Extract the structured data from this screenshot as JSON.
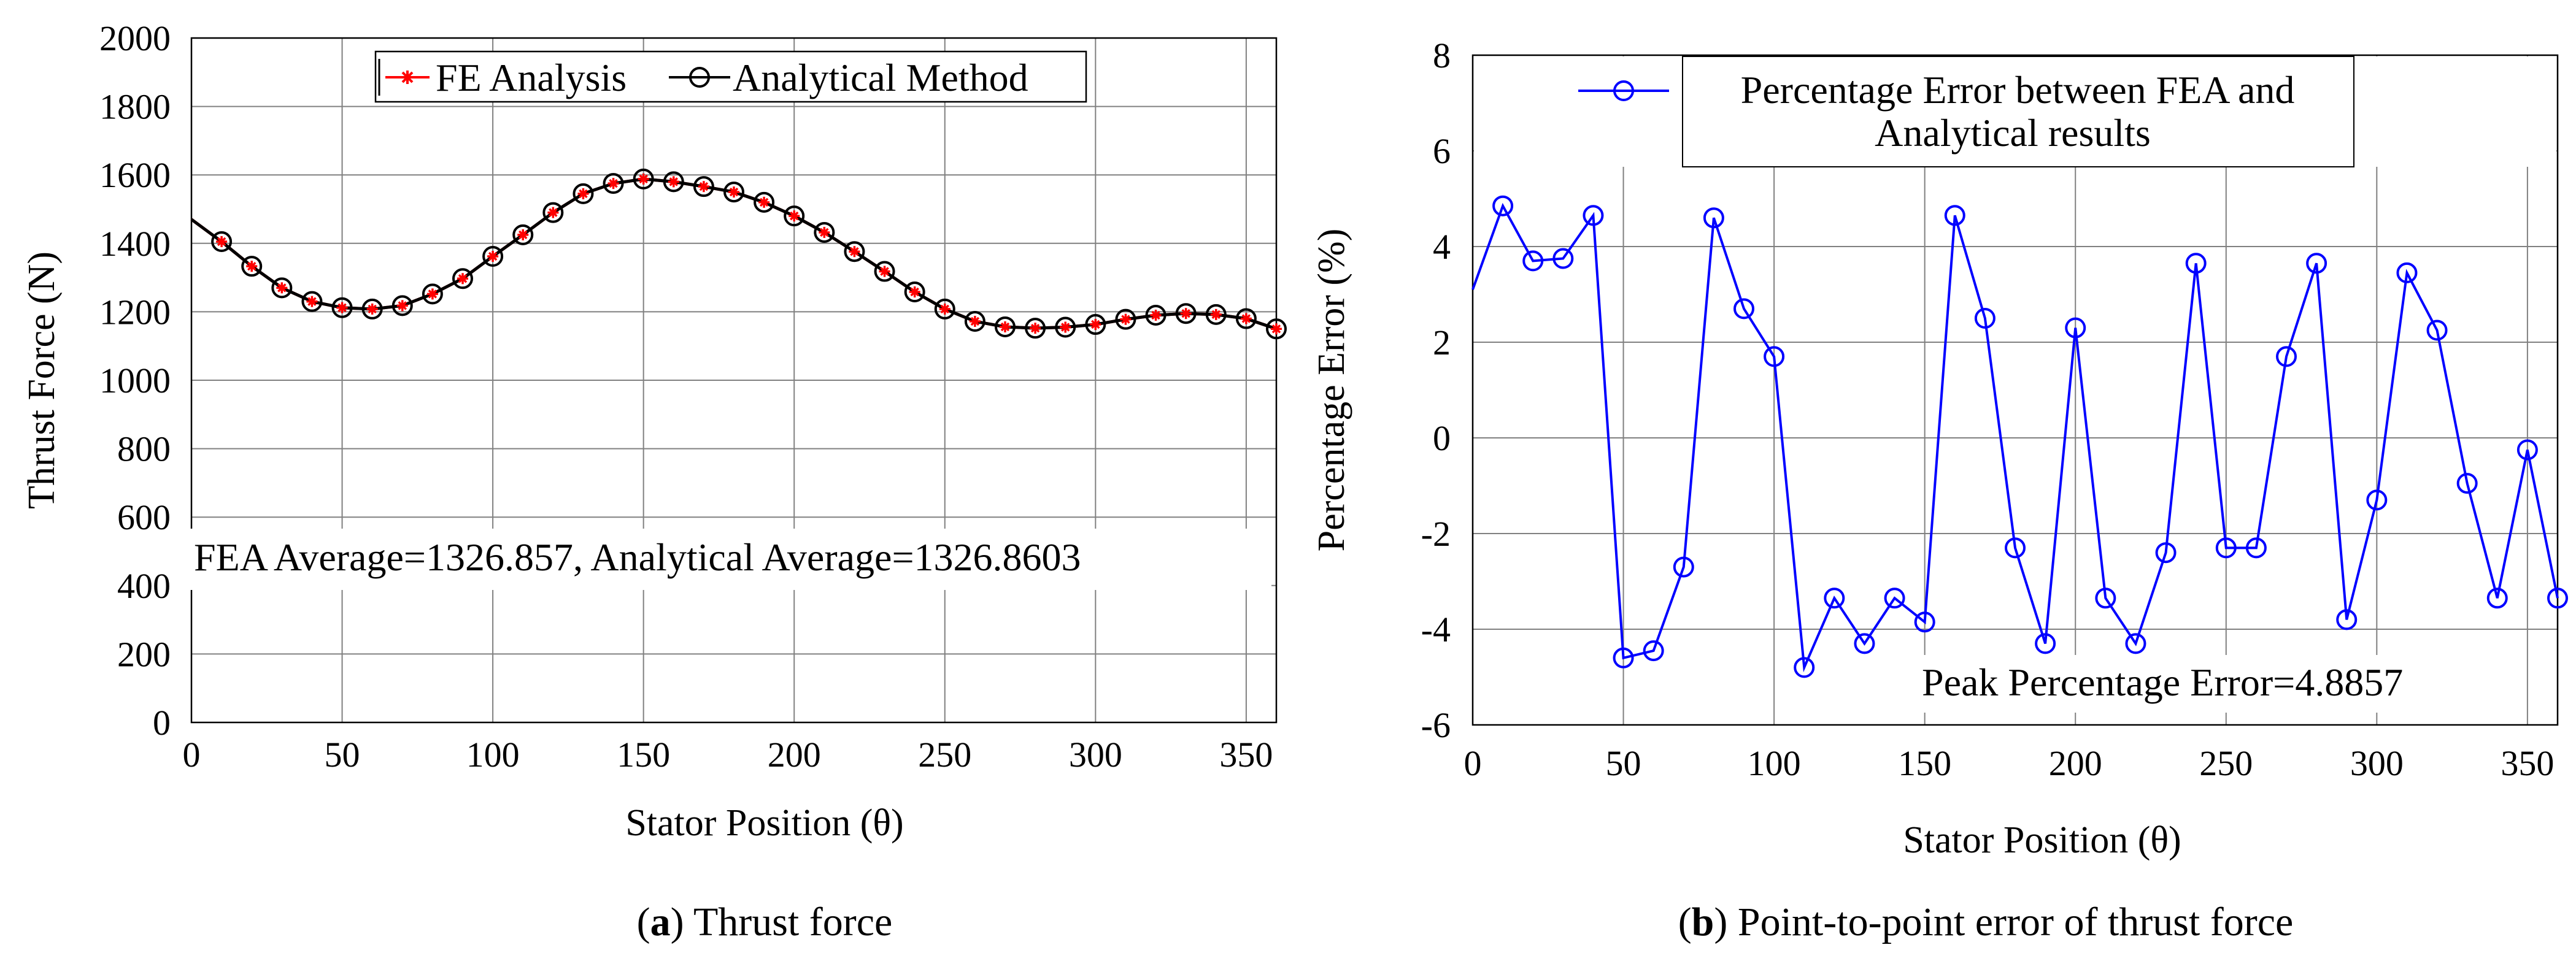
{
  "chart_data": [
    {
      "id": "a",
      "type": "line",
      "caption_label": "a",
      "caption_text": "Thrust force",
      "title": "",
      "xlabel": "Stator Position (θ)",
      "ylabel": "Thrust Force (N)",
      "xlim": [
        0,
        360
      ],
      "ylim": [
        0,
        2000
      ],
      "xticks": [
        "0",
        "50",
        "100",
        "150",
        "200",
        "250",
        "300",
        "350"
      ],
      "yticks": [
        "0",
        "200",
        "400",
        "600",
        "800",
        "1000",
        "1200",
        "1400",
        "1600",
        "1800",
        "2000"
      ],
      "grid": true,
      "legend_position": "top-center",
      "annotation": "FEA Average=1326.857,  Analytical Average=1326.8603",
      "x": [
        0,
        10,
        20,
        30,
        40,
        50,
        60,
        70,
        80,
        90,
        100,
        110,
        120,
        130,
        140,
        150,
        160,
        170,
        180,
        190,
        200,
        210,
        220,
        230,
        240,
        250,
        260,
        270,
        280,
        290,
        300,
        310,
        320,
        330,
        340,
        350,
        360
      ],
      "series": [
        {
          "name": "Analytical Method",
          "color": "#000000",
          "marker": "circle",
          "values": [
            1470,
            1405,
            1333,
            1270,
            1230,
            1212,
            1208,
            1218,
            1252,
            1297,
            1362,
            1425,
            1490,
            1545,
            1575,
            1588,
            1580,
            1566,
            1550,
            1520,
            1480,
            1432,
            1376,
            1318,
            1258,
            1208,
            1172,
            1156,
            1152,
            1155,
            1163,
            1178,
            1190,
            1195,
            1192,
            1180,
            1150
          ]
        },
        {
          "name": "FE Analysis",
          "color": "#ff0000",
          "marker": "star",
          "values": [
            1470,
            1405,
            1333,
            1270,
            1230,
            1212,
            1208,
            1218,
            1252,
            1297,
            1362,
            1425,
            1490,
            1545,
            1575,
            1588,
            1580,
            1566,
            1550,
            1520,
            1480,
            1432,
            1376,
            1318,
            1258,
            1208,
            1172,
            1156,
            1152,
            1155,
            1163,
            1178,
            1190,
            1195,
            1192,
            1180,
            1150
          ]
        }
      ]
    },
    {
      "id": "b",
      "type": "line",
      "caption_label": "b",
      "caption_text": "Point-to-point error of thrust force",
      "title": "",
      "xlabel": "Stator Position (θ)",
      "ylabel": "Percentage Error (%)",
      "xlim": [
        0,
        360
      ],
      "ylim": [
        -6,
        8
      ],
      "xticks": [
        "0",
        "50",
        "100",
        "150",
        "200",
        "250",
        "300",
        "350"
      ],
      "yticks": [
        "-6",
        "-4",
        "-2",
        "0",
        "2",
        "4",
        "6",
        "8"
      ],
      "grid": true,
      "legend_position": "top-center",
      "legend_lines": [
        "Percentage Error between FEA and",
        "Analytical results"
      ],
      "annotation": "Peak Percentage Error=4.8857",
      "x": [
        0,
        10,
        20,
        30,
        40,
        50,
        60,
        70,
        80,
        90,
        100,
        110,
        120,
        130,
        140,
        150,
        160,
        170,
        180,
        190,
        200,
        210,
        220,
        230,
        240,
        250,
        260,
        270,
        280,
        290,
        300,
        310,
        320,
        330,
        340,
        350,
        360
      ],
      "series": [
        {
          "name": "Percentage Error between FEA and Analytical results",
          "color": "#0000ff",
          "marker": "circle",
          "values": [
            3.1,
            4.85,
            3.7,
            3.75,
            4.65,
            -4.6,
            -4.45,
            -2.7,
            4.6,
            2.7,
            1.7,
            -4.8,
            -3.35,
            -4.3,
            -3.35,
            -3.85,
            4.65,
            2.5,
            -2.3,
            -4.3,
            2.3,
            -3.35,
            -4.3,
            -2.4,
            3.65,
            -2.3,
            -2.3,
            1.7,
            3.65,
            -3.8,
            -1.3,
            3.45,
            2.25,
            -0.95,
            -3.35,
            -0.25,
            -3.35
          ]
        }
      ]
    }
  ]
}
